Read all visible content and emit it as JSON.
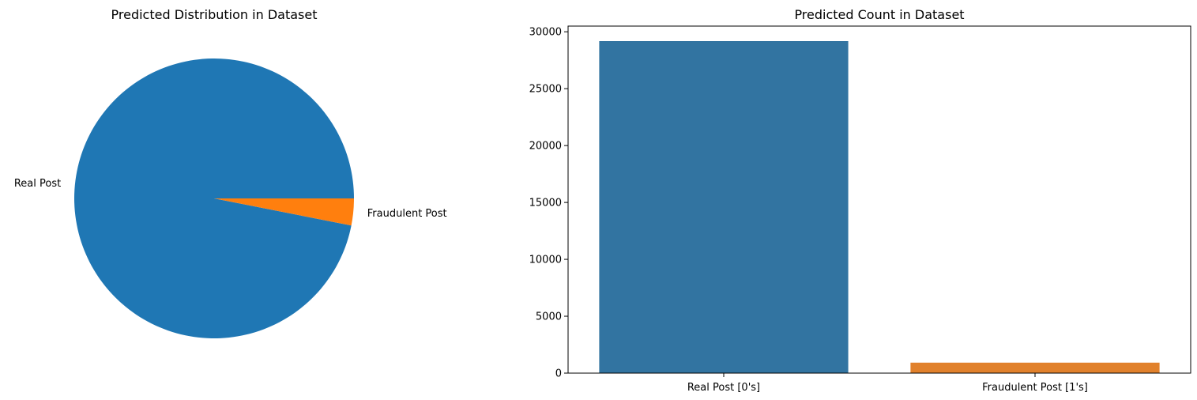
{
  "chart_data": [
    {
      "type": "pie",
      "title": "Predicted Distribution in Dataset",
      "labels": [
        "Real Post",
        "Fraudulent Post"
      ],
      "values": [
        96.9,
        3.1
      ],
      "colors": [
        "#1f77b4",
        "#ff7f0e"
      ]
    },
    {
      "type": "bar",
      "title": "Predicted Count in Dataset",
      "categories": [
        "Real Post [0's]",
        "Fraudulent Post  [1's]"
      ],
      "values": [
        29180,
        920
      ],
      "colors": [
        "#3274a1",
        "#e1812c"
      ],
      "xlabel": "",
      "ylabel": "",
      "ylim": [
        0,
        30500
      ],
      "yticks": [
        0,
        5000,
        10000,
        15000,
        20000,
        25000,
        30000
      ],
      "grid": false
    }
  ]
}
